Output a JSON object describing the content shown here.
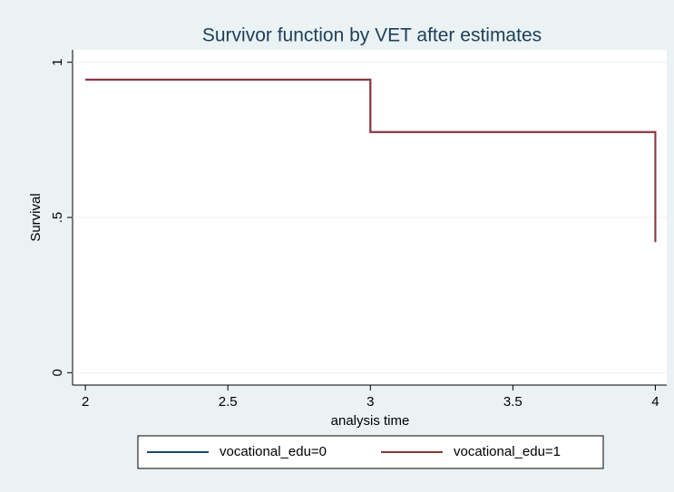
{
  "chart_data": {
    "type": "line",
    "title": "Survivor function by VET after estimates",
    "x_label": "analysis time",
    "y_label": "Survival",
    "x": [
      2,
      3,
      3,
      4,
      4
    ],
    "series": [
      {
        "name": "vocational_edu=0",
        "color": "#1a476f",
        "values": [
          0.944,
          0.944,
          0.775,
          0.775,
          0.421
        ]
      },
      {
        "name": "vocational_edu=1",
        "color": "#90353b",
        "values": [
          0.944,
          0.944,
          0.775,
          0.775,
          0.421
        ]
      }
    ],
    "xlim": [
      1.955,
      4.04
    ],
    "ylim": [
      -0.04,
      1.04
    ],
    "xticks": [
      2,
      2.5,
      3,
      3.5,
      4
    ],
    "yticks": [
      0,
      {
        "value": 0.5,
        "label": ".5"
      },
      1
    ],
    "grid": true,
    "legend": "bottom"
  }
}
